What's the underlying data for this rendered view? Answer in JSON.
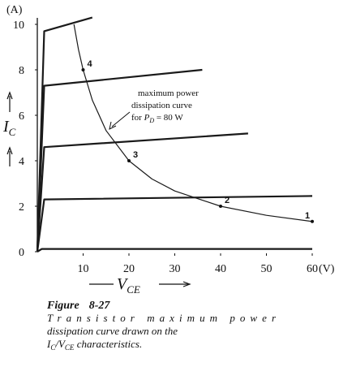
{
  "chart_data": {
    "type": "line",
    "y_unit": "(A)",
    "x_unit": "(V)",
    "y_label": {
      "main": "I",
      "sub": "C"
    },
    "x_label": {
      "main": "V",
      "sub": "CE"
    },
    "xlim": [
      0,
      60
    ],
    "ylim": [
      0,
      10
    ],
    "xticks": [
      10,
      20,
      30,
      40,
      50,
      60
    ],
    "yticks": [
      0,
      2,
      4,
      6,
      8,
      10
    ],
    "series": [
      {
        "color": "#1a1a1a",
        "x": [
          0,
          1,
          60
        ],
        "values": [
          0,
          0.12,
          0.12
        ]
      },
      {
        "color": "#1a1a1a",
        "x": [
          0,
          1.5,
          60
        ],
        "values": [
          0,
          2.3,
          2.45
        ]
      },
      {
        "color": "#1a1a1a",
        "x": [
          0,
          1.5,
          46
        ],
        "values": [
          0,
          4.6,
          5.2
        ]
      },
      {
        "color": "#1a1a1a",
        "x": [
          0,
          1.5,
          36
        ],
        "values": [
          0,
          7.3,
          8
        ]
      },
      {
        "color": "#1a1a1a",
        "x": [
          0,
          1.5,
          12
        ],
        "values": [
          0,
          9.7,
          10.3
        ]
      },
      {
        "color": "#1a1a1a",
        "x": [
          8,
          9,
          10,
          12,
          15,
          20,
          25,
          30,
          40,
          50,
          60
        ],
        "values": [
          10,
          8.89,
          8,
          6.67,
          5.33,
          4,
          3.2,
          2.67,
          2,
          1.6,
          1.33
        ]
      }
    ],
    "point_labels": [
      {
        "label": "4",
        "x": 10,
        "value": 8
      },
      {
        "label": "3",
        "x": 20,
        "value": 4
      },
      {
        "label": "2",
        "x": 40,
        "value": 2
      },
      {
        "label": "1",
        "x": 60,
        "value": 1.33
      }
    ],
    "annotation": {
      "lines": [
        "maximum power",
        "dissipation curve"
      ],
      "prefix": "for ",
      "main": "P",
      "sub": "D",
      "suffix": " = 80 W"
    },
    "caption": {
      "figure": "Figure",
      "number": "8-27",
      "lines": [
        "Transistor maximum power",
        "dissipation curve drawn on the"
      ],
      "a": "I",
      "a_sub": "C",
      "b": "/V",
      "b_sub": "CE",
      "c": " characteristics."
    }
  }
}
